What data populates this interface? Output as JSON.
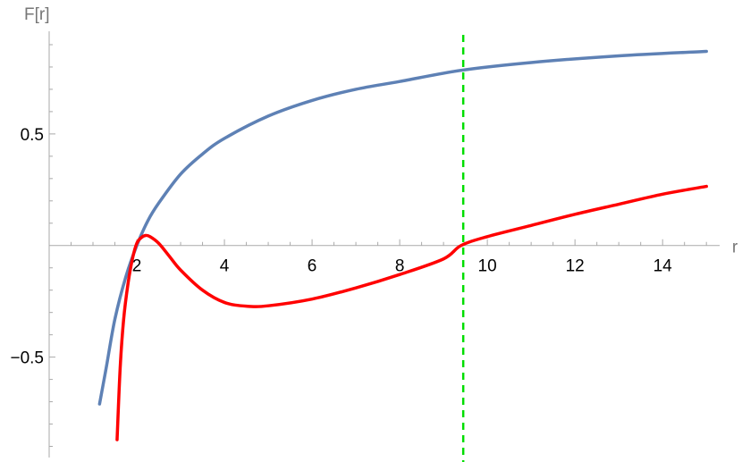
{
  "chart_data": {
    "type": "line",
    "title": "",
    "xlabel": "r",
    "ylabel": "F[r]",
    "xlim": [
      0,
      15.2
    ],
    "ylim": [
      -0.95,
      0.96
    ],
    "x_ticks": [
      2,
      4,
      6,
      8,
      10,
      12,
      14
    ],
    "y_ticks": [
      0.5,
      -0.5
    ],
    "x_tick_labels": [
      "2",
      "4",
      "6",
      "8",
      "10",
      "12",
      "14"
    ],
    "y_tick_labels": [
      "0.5",
      "−0.5"
    ],
    "grid": false,
    "series": [
      {
        "color": "#5e81b5",
        "x": [
          1.15,
          1.3,
          1.5,
          1.75,
          2.0,
          2.25,
          2.5,
          3.0,
          3.5,
          4.0,
          5.0,
          6.0,
          7.0,
          8.0,
          9.4,
          11.0,
          13.0,
          15.0
        ],
        "y": [
          -0.71,
          -0.55,
          -0.33,
          -0.14,
          0.0,
          0.11,
          0.19,
          0.32,
          0.41,
          0.48,
          0.58,
          0.65,
          0.7,
          0.735,
          0.785,
          0.82,
          0.85,
          0.87
        ]
      },
      {
        "color": "#ff0000",
        "x": [
          1.55,
          1.62,
          1.7,
          1.8,
          1.9,
          2.0,
          2.1,
          2.2,
          2.3,
          2.5,
          2.75,
          3.0,
          3.5,
          4.0,
          4.5,
          5.0,
          6.0,
          7.0,
          8.0,
          9.0,
          9.4,
          10.0,
          11.0,
          12.0,
          13.0,
          14.0,
          15.0
        ],
        "y": [
          -0.87,
          -0.55,
          -0.33,
          -0.17,
          -0.06,
          0.01,
          0.035,
          0.045,
          0.04,
          0.01,
          -0.05,
          -0.11,
          -0.2,
          -0.255,
          -0.272,
          -0.27,
          -0.24,
          -0.19,
          -0.13,
          -0.06,
          0.0,
          0.04,
          0.09,
          0.14,
          0.185,
          0.23,
          0.265
        ]
      }
    ],
    "vertical_line": {
      "x": 9.45,
      "color": "#00dd00",
      "style": "dashed"
    }
  }
}
